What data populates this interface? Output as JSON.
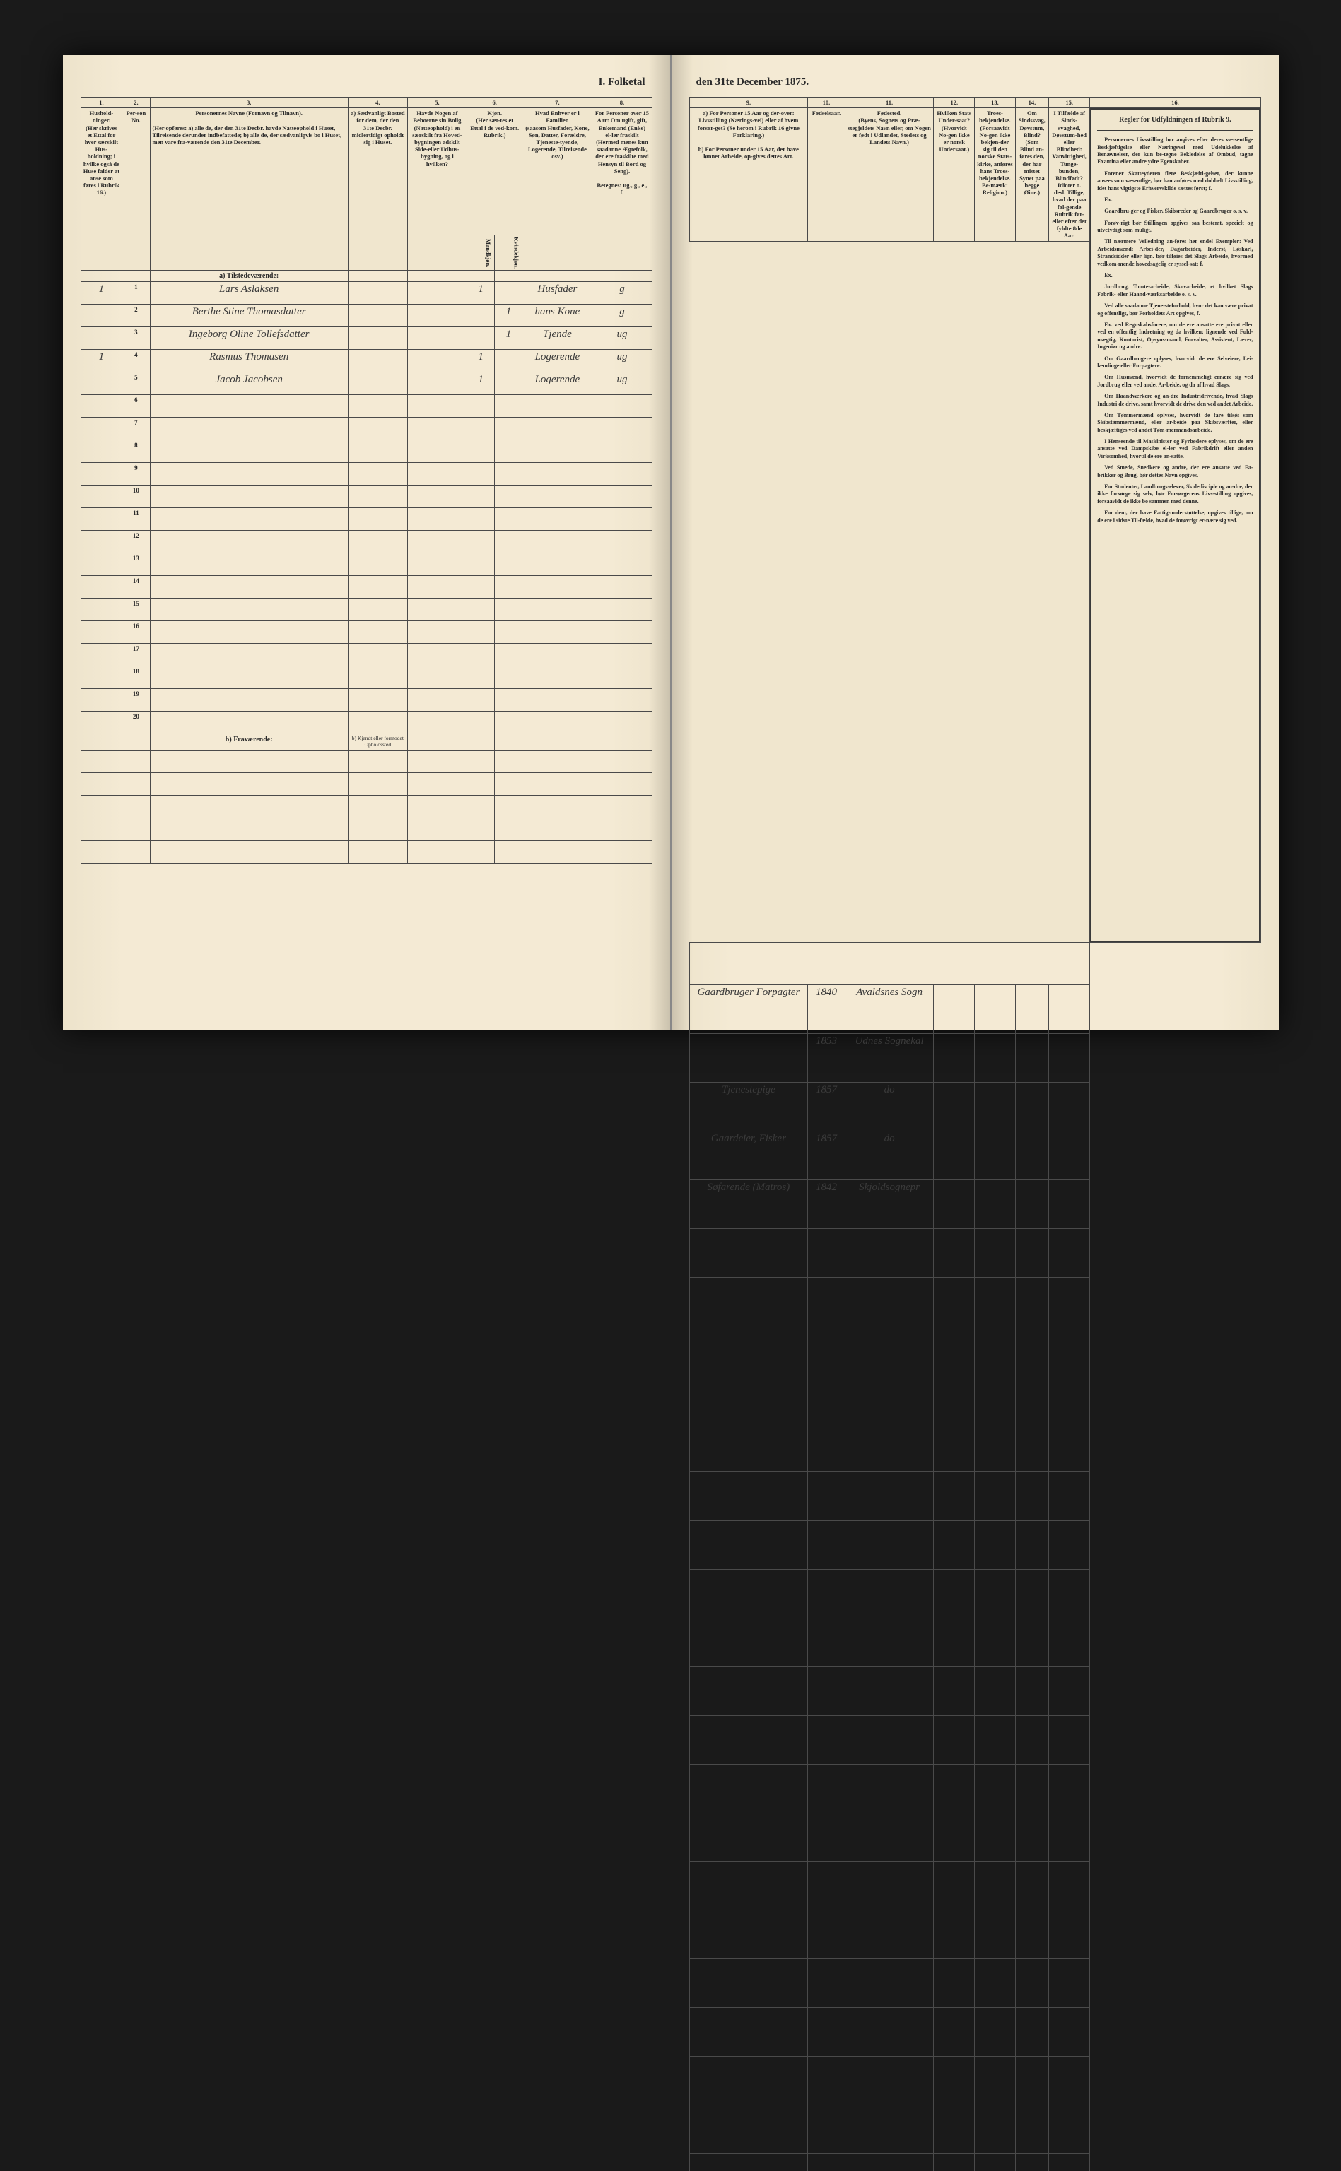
{
  "title_left": "I. Folketal",
  "title_right": "den 31te December 1875.",
  "columns_left": {
    "c1": "1.",
    "c2": "2.",
    "c3": "3.",
    "c4": "4.",
    "c5": "5.",
    "c6": "6.",
    "c7": "7.",
    "c8": "8.",
    "h1": "Hushold-ninger.",
    "h1sub": "(Her skrives et Ettal for hver særskilt Hus-holdning; i hvilke også de Huse falder at anse som føres i Rubrik 16.)",
    "h2": "Per-son No.",
    "h3": "Personernes Navne (Fornavn og Tilnavn).",
    "h3sub": "(Her opføres: a) alle de, der den 31te Decbr. havde Natteophold i Huset, Tilreisende derunder indbefattede; b) alle de, der sædvanligvis bo i Huset, men vare fra-værende den 31te December.",
    "h4": "a) Sædvanligt Bosted for dem, der den 31te Decbr. midlertidigt opholdt sig i Huset.",
    "h4b": "b) Kjendt eller formodet Opholdssted",
    "h5": "Havde Nogen af Beboerne sin Bolig (Natteophold) i en særskilt fra Hoved-bygningen adskilt Side-eller Udhus-bygning, og i hvilken?",
    "h6": "Kjøn.",
    "h6sub": "(Her sæt-tes et Ettal i de ved-kom. Rubrik.)",
    "h6a": "Mandkjøn.",
    "h6b": "Kvindekjøn.",
    "h7": "Hvad Enhver er i Familien",
    "h7sub": "(saasom Husfader, Kone, Søn, Datter, Forældre, Tjeneste-tyende, Logerende, Tilreisende osv.)",
    "h8": "For Personer over 15 Aar: Om ugift, gift, Enkemand (Enke) el-ler fraskilt (Hermed menes kun saadanne Ægtefolk, der ere fraskilte med Hensyn til Bord og Seng).",
    "h8sub": "Betegnes: ug., g., e., f."
  },
  "columns_right": {
    "c9": "9.",
    "c10": "10.",
    "c11": "11.",
    "c12": "12.",
    "c13": "13.",
    "c14": "14.",
    "c15": "15.",
    "c16": "16.",
    "h9": "a) For Personer 15 Aar og der-over: Livsstilling (Nærings-vei) eller af hvem forsør-get? (Se herom i Rubrik 16 givne Forklaring.)",
    "h9b": "b) For Personer under 15 Aar, der have lønnet Arbeide, op-gives dettes Art.",
    "h10": "Fødselsaar.",
    "h11": "Fødested.",
    "h11sub": "(Byens, Sognets og Præ-stegjeldets Navn eller, om Nogen er født i Udlandet, Stedets og Landets Navn.)",
    "h12": "Hvilken Stats Under-saat?",
    "h12sub": "(Hvorvidt No-gen ikke er norsk Undersaat.)",
    "h13": "Troes-bekjendelse.",
    "h13sub": "(Forsaavidt No-gen ikke bekjen-der sig til den norske Stats-kirke, anføres hans Troes-bekjendelse. Be-mærk: Religion.)",
    "h14": "Om Sindssvag, Døvstum, Blind?",
    "h14sub": "(Som Blind an-føres den, der har mistet Synet paa begge Øine.)",
    "h15": "I Tilfælde af Sinds-svaghed, Døvstum-hed eller Blindhed: Vanvittighed, Tunge-bunden, Blindfødt? Idioter o. desl. Tillige, hvad der paa føl-gende Rubrik før-eller efter det fyldte 8de Aar.",
    "h16": "Regler for Udfyldningen af Rubrik 9.",
    "rules": "Personernes Livsstilling bør angives efter deres væ-sentlige Beskjæftigelse eller Næringsvei med Udelukkelse af Benævnelser, der kun be-tegne Bekledelse af Ombud, tagne Examina eller andre ydre Egenskaber. Forener Skatteyderen flere Beskjæfti-gelser, der kunne ansees som væsentlige, bør han anføres med dobbelt Livsstilling, idet hans vigtigste Erhvervskilde sættes først; f. Ex. Gaardbru-ger og Fisker, Skibsreder og Gaardbruger o. s. v. Forøv-rigt bør Stillingen opgives saa bestemt, specielt og utvetydigt som muligt. Til nærmere Veiledning an-føres her endel Exempler: Ved Arbeidsmænd: Arbei-der, Dagarbeider, Inderst, Løskarl, Strandsidder eller lign. bør tilføies det Slags Arbeide, hvormed vedkom-mende hovedsagelig er syssel-sat; f. Ex. Jordbrug, Tomte-arbeide, Skovarbeide, et hvilket Slags Fabrik- eller Haand-værksarbeide o. s. v. Ved alle saadanne Tjene-steforhold, hvor det kan være privat og offentligt, bør Forholdets Art opgives, f. Ex. ved Regnskabsforere, om de ere ansatte ere privat eller ved en offentlig Indretning og da hvilken; lignende ved Fuld-mægtig, Kontorist, Opsyns-mand, Forvalter, Assistent, Lærer, Ingeniør og andre. Om Gaardbrugere oplyses, hvorvidt de ere Selveiere, Lei-lændinge eller Forpagtere. Om Husmænd, hvorvidt de fornemmeligt ernære sig ved Jordbrug eller ved andet Ar-beide, og da af hvad Slags. Om Haandværkere og an-dre Industridrivende, hvad Slags Industri de drive, samt hvorvidt de drive den ved andet Arbeide. Om Tømmermænd oplyses, hvorvidt de fare tilsøs som Skibstømmermænd, eller ar-beide paa Skibsværfter, eller beskjæftiges ved andet Tøm-mermandsarbeide. I Henseende til Maskinister og Fyrbødere oplyses, om de ere ansatte ved Dampskibe el-ler ved Fabrikdrift eller anden Virksomhed, hvortil de ere an-satte. Ved Smede, Snedkere og andre, der ere ansatte ved Fa-brikker og Brug, bør dettes Navn opgives. For Studenter, Landbrugs-elever, Skoledisciple og an-dre, der ikke forsørge sig selv, bør Forsørgerens Livs-stilling opgives, forsaavidt de ikke bo sammen med denne. For dem, der have Fattig-understøttelse, opgives tillige, om de ere i sidste Til-fælde, hvad de forøvrigt er-nære sig ved."
  },
  "section_a": "a) Tilstedeværende:",
  "section_b": "b) Fraværende:",
  "rows": [
    {
      "hh": "1",
      "pn": "1",
      "name": "Lars Aslaksen",
      "c4": "",
      "c5": "",
      "m": "1",
      "k": "",
      "fam": "Husfader",
      "stat": "g",
      "liv": "Gaardbruger Forpagter",
      "aar": "1840",
      "sted": "Avaldsnes Sogn"
    },
    {
      "hh": "",
      "pn": "2",
      "name": "Berthe Stine Thomasdatter",
      "c4": "",
      "c5": "",
      "m": "",
      "k": "1",
      "fam": "hans Kone",
      "stat": "g",
      "liv": "",
      "aar": "1853",
      "sted": "Udnes Sognekal"
    },
    {
      "hh": "",
      "pn": "3",
      "name": "Ingeborg Oline Tollefsdatter",
      "c4": "",
      "c5": "",
      "m": "",
      "k": "1",
      "fam": "Tjende",
      "stat": "ug",
      "liv": "Tjenestepige",
      "aar": "1857",
      "sted": "do"
    },
    {
      "hh": "1",
      "pn": "4",
      "name": "Rasmus Thomasen",
      "c4": "",
      "c5": "",
      "m": "1",
      "k": "",
      "fam": "Logerende",
      "stat": "ug",
      "liv": "Gaardeier, Fisker",
      "aar": "1857",
      "sted": "do"
    },
    {
      "hh": "",
      "pn": "5",
      "name": "Jacob Jacobsen",
      "c4": "",
      "c5": "",
      "m": "1",
      "k": "",
      "fam": "Logerende",
      "stat": "ug",
      "liv": "Søfarende (Matros)",
      "aar": "1842",
      "sted": "Skjoldsognepr"
    }
  ],
  "empty_rows_left": [
    6,
    7,
    8,
    9,
    10,
    11,
    12,
    13,
    14,
    15,
    16,
    17,
    18,
    19,
    20
  ],
  "colors": {
    "paper": "#f4ead4",
    "ink": "#2a2a2a",
    "border": "#4a4a4a",
    "background": "#1a1a1a"
  }
}
